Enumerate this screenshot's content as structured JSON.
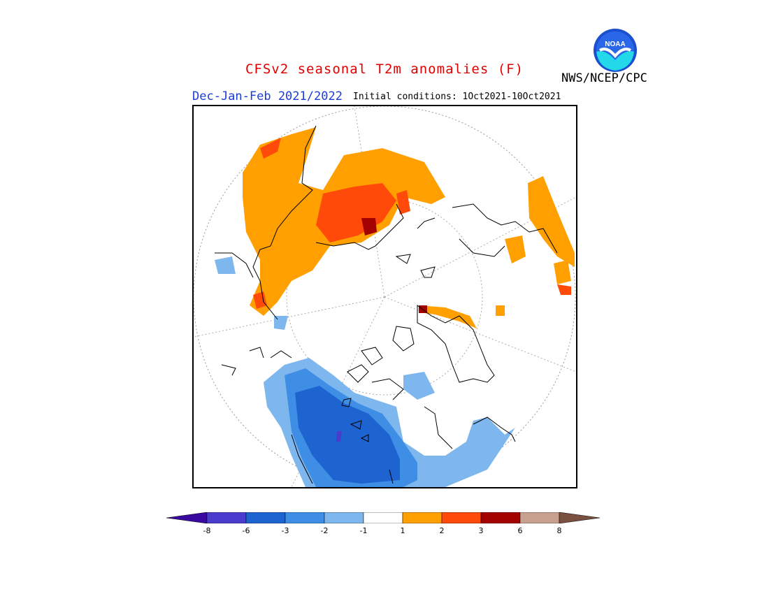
{
  "header": {
    "title": "CFSv2 seasonal T2m anomalies (F)",
    "subtitle": "Dec-Jan-Feb 2021/2022",
    "initial_conditions": "Initial conditions: 1Oct2021-10Oct2021",
    "organization": "NWS/NCEP/CPC",
    "logo_text": "NOAA"
  },
  "colors": {
    "title": "#e00000",
    "subtitle": "#1a3cd8",
    "bins": [
      "#3a0aa0",
      "#4a3ccc",
      "#1e64d0",
      "#3f8ee6",
      "#7eb6ee",
      "#ffffff",
      "#ffa000",
      "#ff4a0a",
      "#a30000",
      "#c8a090",
      "#7a5040"
    ]
  },
  "colorbar": {
    "labels": [
      "-8",
      "-6",
      "-3",
      "-2",
      "-1",
      "1",
      "2",
      "3",
      "6",
      "8"
    ]
  },
  "map": {
    "projection": "north-polar-stereographic",
    "variable": "2m temperature anomaly",
    "units": "F"
  }
}
